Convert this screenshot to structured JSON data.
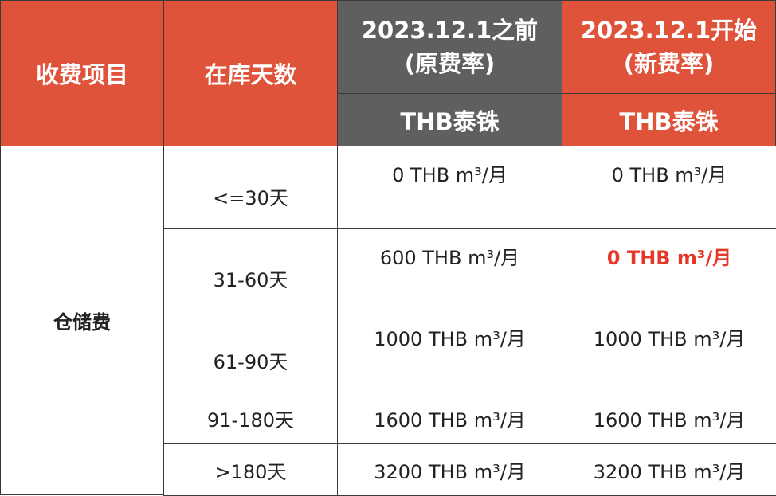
{
  "table": {
    "header": {
      "item": "收费项目",
      "days": "在库天数",
      "old": {
        "title": "2023.12.1之前",
        "note": "(原费率)",
        "currency": "THB泰铢"
      },
      "new": {
        "title": "2023.12.1开始",
        "note": "(新费率)",
        "currency": "THB泰铢"
      }
    },
    "item": "仓储费",
    "rows": [
      {
        "days": "<=30天",
        "old": "0 THB m³/月",
        "new": "0 THB m³/月"
      },
      {
        "days": "31-60天",
        "old": "600 THB m³/月",
        "new": "0 THB m³/月"
      },
      {
        "days": "61-90天",
        "old": "1000 THB m³/月",
        "new": "1000 THB m³/月"
      },
      {
        "days": "91-180天",
        "old": "1600 THB m³/月",
        "new": "1600 THB m³/月"
      },
      {
        "days": ">180天",
        "old": "3200 THB m³/月",
        "new": "3200 THB m³/月"
      }
    ]
  }
}
